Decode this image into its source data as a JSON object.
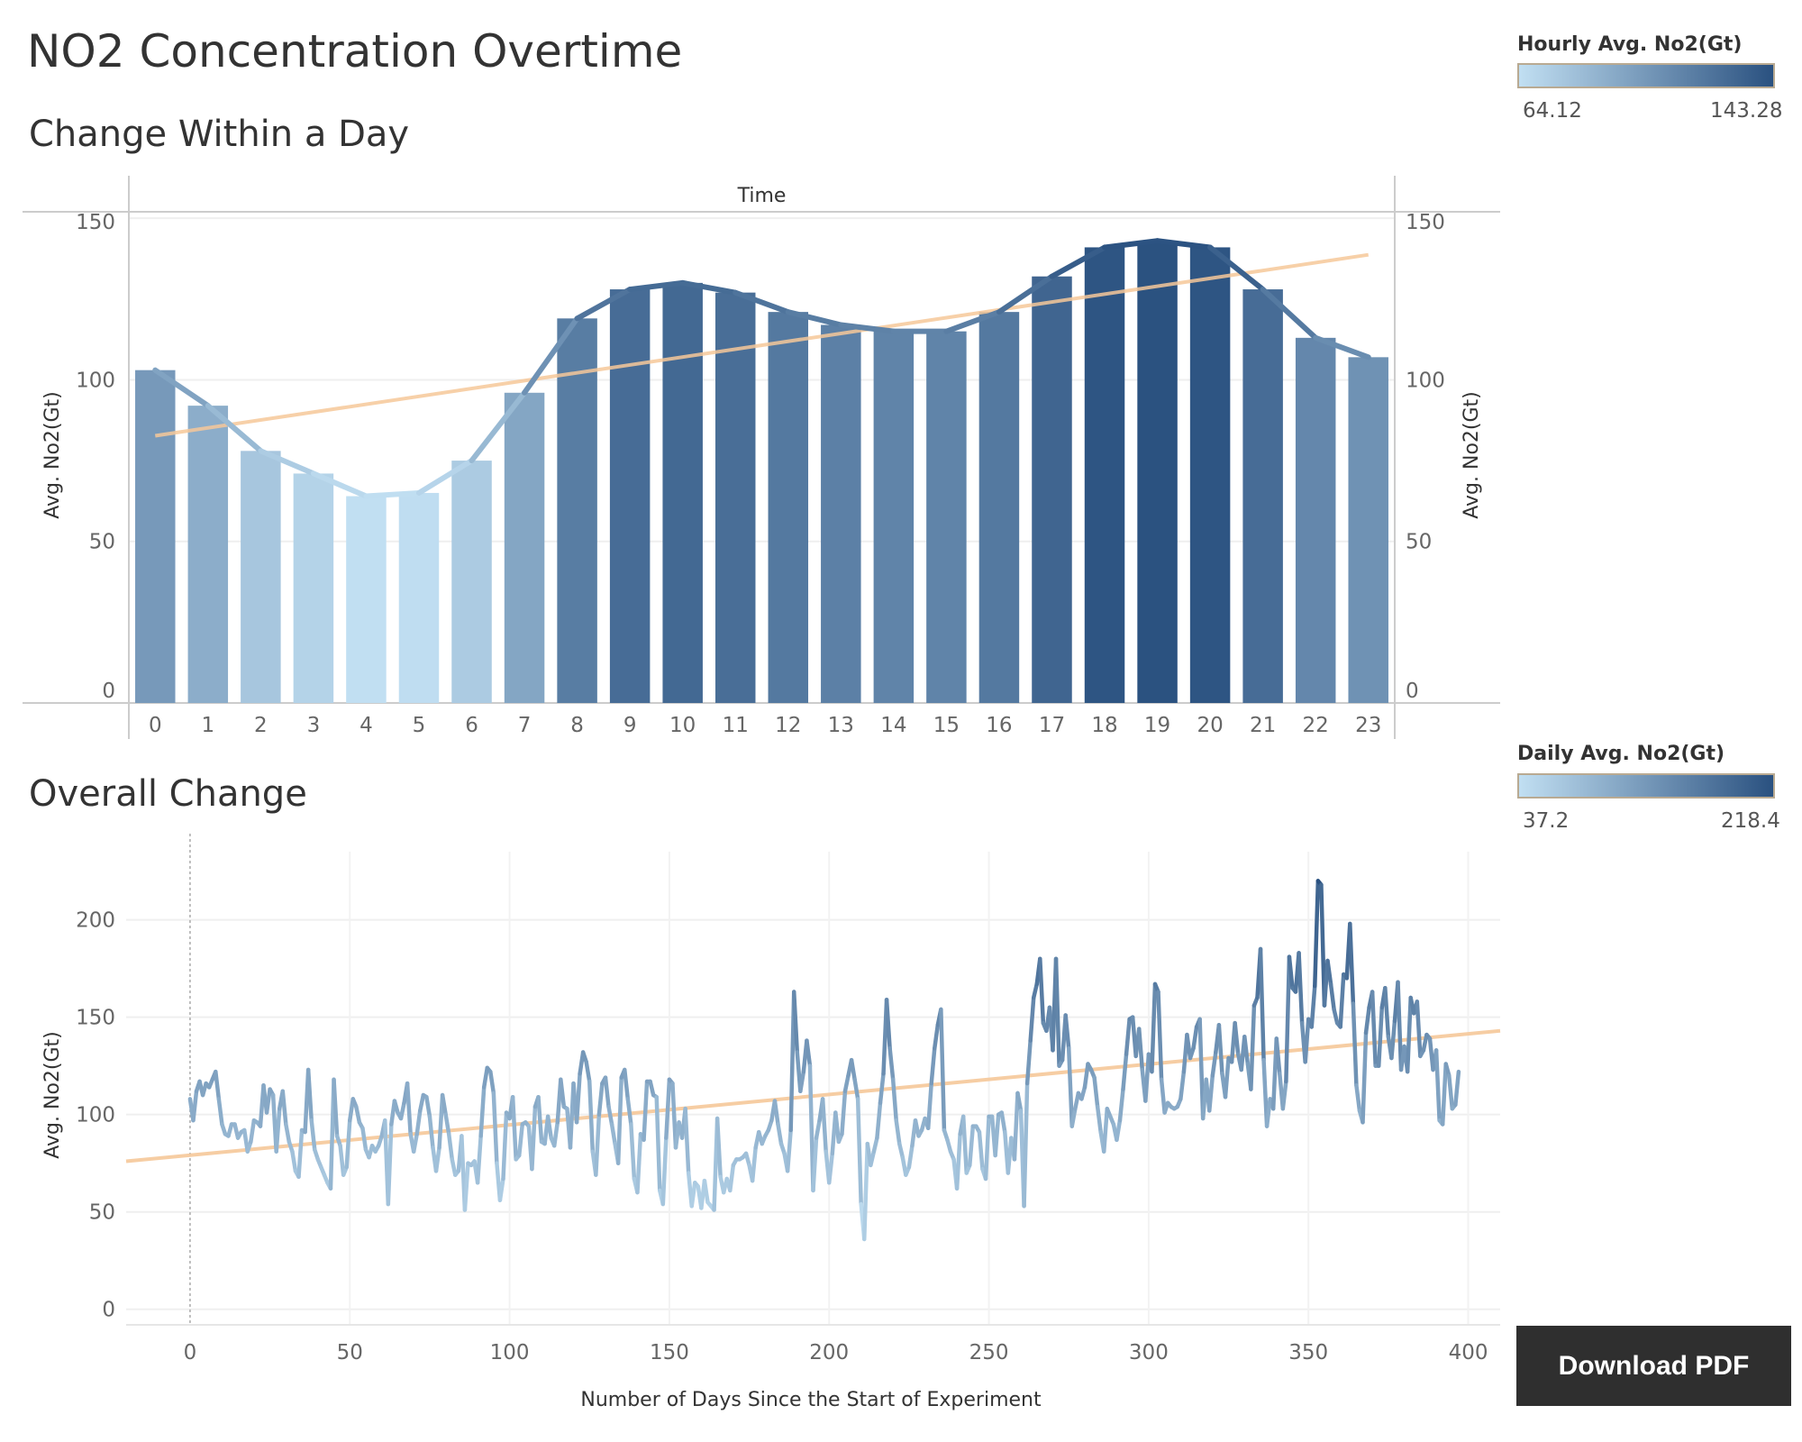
{
  "dashboard_title": "NO2 Concentration Overtime",
  "download_button": "Download PDF",
  "hourly_legend": {
    "title": "Hourly Avg. No2(Gt)",
    "min": "64.12",
    "max": "143.28",
    "color_low": "#c1dff2",
    "color_high": "#2a5180"
  },
  "daily_legend": {
    "title": "Daily Avg. No2(Gt)",
    "min": "37.2",
    "max": "218.4",
    "color_low": "#c1dff2",
    "color_high": "#2a5180"
  },
  "hourly_chart": {
    "title": "Change Within a Day",
    "header": "Time"
  },
  "daily_chart": {
    "title": "Overall Change"
  },
  "chart_data": [
    {
      "type": "bar",
      "title": "Change Within a Day",
      "column_header": "Time",
      "ylabel": "Avg. No2(Gt)",
      "ylabel_right": "Avg. No2(Gt)",
      "ylim": [
        0,
        152
      ],
      "yticks": [
        0,
        50,
        100,
        150
      ],
      "categories": [
        "0",
        "1",
        "2",
        "3",
        "4",
        "5",
        "6",
        "7",
        "8",
        "9",
        "10",
        "11",
        "12",
        "13",
        "14",
        "15",
        "16",
        "17",
        "18",
        "19",
        "20",
        "21",
        "22",
        "23"
      ],
      "values": [
        103,
        92,
        78,
        71,
        64,
        65,
        75,
        96,
        119,
        128,
        130,
        127,
        121,
        117,
        115,
        115,
        121,
        132,
        141,
        143,
        141,
        128,
        113,
        107
      ],
      "overlay_line": {
        "values": [
          103,
          92,
          78,
          71,
          64,
          65,
          75,
          96,
          119,
          128,
          130,
          127,
          121,
          117,
          115,
          115,
          121,
          132,
          141,
          143,
          141,
          128,
          113,
          107
        ]
      },
      "trend_line": {
        "color": "#f6c89a",
        "start": 82.7,
        "end": 138.7
      },
      "grid": true,
      "color_scale": {
        "min": 64.12,
        "max": 143.28,
        "low": "#c1dff2",
        "high": "#2a5180"
      }
    },
    {
      "type": "line",
      "title": "Overall Change",
      "xlabel": "Number of Days Since the Start of Experiment",
      "ylabel": "Avg. No2(Gt)",
      "xlim": [
        -20,
        410
      ],
      "ylim": [
        -8,
        235
      ],
      "xticks": [
        0,
        50,
        100,
        150,
        200,
        250,
        300,
        350,
        400
      ],
      "yticks": [
        0,
        50,
        100,
        150,
        200
      ],
      "grid": true,
      "trend_line": {
        "color": "#f6c89a",
        "x": [
          -20,
          410
        ],
        "y": [
          76,
          143
        ]
      },
      "color_scale": {
        "min": 37.2,
        "max": 218.4,
        "low": "#c1dff2",
        "high": "#2a5180"
      },
      "series": [
        {
          "values": [
            108,
            97,
            112,
            117,
            110,
            116,
            114,
            118,
            122,
            108,
            95,
            90,
            89,
            95,
            95,
            88,
            91,
            92,
            81,
            86,
            97,
            96,
            94,
            115,
            101,
            113,
            110,
            81,
            103,
            112,
            95,
            86,
            81,
            71,
            68,
            92,
            91,
            123,
            97,
            82,
            77,
            73,
            69,
            65,
            62,
            118,
            89,
            84,
            69,
            73,
            97,
            108,
            104,
            96,
            93,
            82,
            78,
            84,
            81,
            84,
            89,
            97,
            54,
            95,
            107,
            101,
            98,
            106,
            116,
            90,
            81,
            90,
            102,
            110,
            109,
            99,
            83,
            71,
            83,
            110,
            100,
            90,
            77,
            69,
            71,
            89,
            51,
            75,
            74,
            76,
            65,
            89,
            114,
            124,
            122,
            111,
            75,
            56,
            67,
            101,
            98,
            109,
            77,
            79,
            95,
            96,
            94,
            72,
            104,
            109,
            86,
            85,
            99,
            88,
            84,
            96,
            118,
            104,
            103,
            83,
            116,
            96,
            121,
            132,
            127,
            117,
            81,
            69,
            100,
            116,
            119,
            104,
            95,
            85,
            75,
            119,
            123,
            108,
            95,
            67,
            60,
            90,
            87,
            117,
            117,
            110,
            109,
            61,
            54,
            88,
            118,
            116,
            83,
            96,
            88,
            103,
            70,
            53,
            65,
            63,
            52,
            66,
            55,
            53,
            51,
            98,
            68,
            60,
            67,
            61,
            74,
            77,
            77,
            78,
            80,
            74,
            66,
            83,
            91,
            85,
            89,
            92,
            97,
            107,
            95,
            85,
            80,
            71,
            92,
            163,
            132,
            112,
            122,
            138,
            125,
            61,
            88,
            97,
            108,
            81,
            65,
            80,
            101,
            86,
            90,
            112,
            120,
            128,
            118,
            108,
            54,
            36,
            85,
            74,
            81,
            88,
            106,
            121,
            159,
            134,
            118,
            97,
            85,
            78,
            69,
            73,
            84,
            97,
            89,
            92,
            98,
            93,
            116,
            134,
            146,
            154,
            92,
            87,
            81,
            77,
            62,
            90,
            99,
            70,
            74,
            94,
            94,
            91,
            72,
            67,
            99,
            99,
            79,
            100,
            101,
            91,
            70,
            88,
            77,
            111,
            102,
            53,
            116,
            138,
            160,
            167,
            180,
            147,
            143,
            155,
            133,
            180,
            125,
            128,
            151,
            134,
            94,
            103,
            111,
            108,
            114,
            126,
            123,
            119,
            104,
            91,
            81,
            103,
            99,
            95,
            87,
            97,
            113,
            131,
            149,
            150,
            130,
            144,
            123,
            107,
            131,
            122,
            167,
            163,
            118,
            101,
            106,
            104,
            103,
            104,
            108,
            122,
            141,
            129,
            134,
            145,
            149,
            98,
            118,
            102,
            120,
            132,
            146,
            121,
            109,
            129,
            127,
            147,
            131,
            123,
            140,
            126,
            113,
            156,
            160,
            185,
            128,
            94,
            108,
            103,
            139,
            121,
            103,
            117,
            181,
            165,
            163,
            183,
            147,
            127,
            149,
            145,
            166,
            220,
            218,
            156,
            179,
            167,
            154,
            147,
            145,
            172,
            170,
            198,
            157,
            115,
            102,
            96,
            142,
            155,
            163,
            125,
            125,
            155,
            165,
            140,
            129,
            148,
            168,
            123,
            135,
            122,
            160,
            152,
            158,
            130,
            133,
            141,
            139,
            123,
            133,
            97,
            95,
            126,
            120,
            103,
            105,
            122
          ]
        }
      ]
    }
  ]
}
